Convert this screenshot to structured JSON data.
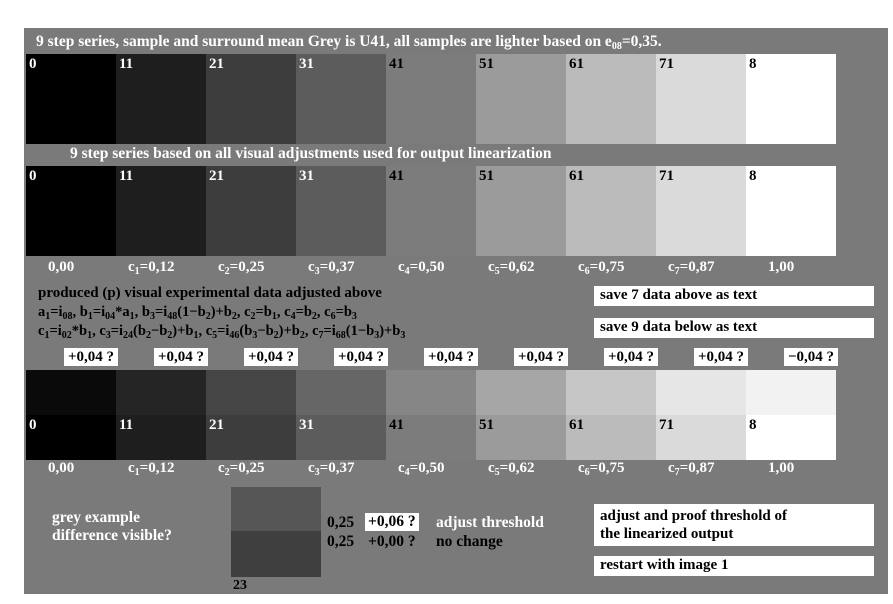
{
  "title_prefix": "9 step series, sample and surround mean Grey is U41, all samples are lighter based on e",
  "title_sub": "08",
  "title_suffix": "=0,35.",
  "series1": {
    "labels": [
      "0",
      "11",
      "21",
      "31",
      "41",
      "51",
      "61",
      "71",
      "8"
    ],
    "colors": [
      "#000000",
      "#1e1e1e",
      "#3d3d3d",
      "#5c5c5c",
      "#7c7c7c",
      "#9b9b9b",
      "#bbbbbb",
      "#dadada",
      "#ffffff"
    ]
  },
  "series2_title": "9 step series based on all visual adjustments used for output linearization",
  "series2": {
    "labels": [
      "0",
      "11",
      "21",
      "31",
      "41",
      "51",
      "61",
      "71",
      "8"
    ],
    "colors": [
      "#000000",
      "#1e1e1e",
      "#3d3d3d",
      "#5c5c5c",
      "#7c7c7c",
      "#9b9b9b",
      "#bbbbbb",
      "#dadada",
      "#ffffff"
    ]
  },
  "caption_row1": [
    {
      "pre": "0,00",
      "sub": "",
      "post": ""
    },
    {
      "pre": "c",
      "sub": "1",
      "post": "=0,12"
    },
    {
      "pre": "c",
      "sub": "2",
      "post": "=0,25"
    },
    {
      "pre": "c",
      "sub": "3",
      "post": "=0,37"
    },
    {
      "pre": "c",
      "sub": "4",
      "post": "=0,50"
    },
    {
      "pre": "c",
      "sub": "5",
      "post": "=0,62"
    },
    {
      "pre": "c",
      "sub": "6",
      "post": "=0,75"
    },
    {
      "pre": "c",
      "sub": "7",
      "post": "=0,87"
    },
    {
      "pre": "1,00",
      "sub": "",
      "post": ""
    }
  ],
  "produced_text": "produced (p) visual experimental data adjusted above",
  "formula1": "a1=i08, b1=i04*a1, b3=i48(1−b2)+b2, c2=b1, c4=b2, c6=b3",
  "formula2": "c1=i02*b1, c3=i24(b2−b2)+b1, c5=i46(b3−b2)+b2, c7=i68(1−b3)+b3",
  "save7_label": "save 7 data above as text",
  "save9_label": "save 9 data below as text",
  "increments": [
    "+0,04 ?",
    "+0,04 ?",
    "+0,04 ?",
    "+0,04 ?",
    "+0,04 ?",
    "+0,04 ?",
    "+0,04 ?",
    "+0,04 ?",
    "−0,04 ?"
  ],
  "series3": {
    "labels": [
      "0",
      "11",
      "21",
      "31",
      "41",
      "51",
      "61",
      "71",
      "8"
    ],
    "upper": [
      "#0a0a0a",
      "#252525",
      "#454545",
      "#666666",
      "#868686",
      "#a6a6a6",
      "#c6c6c6",
      "#e6e6e6",
      "#f2f2f2"
    ],
    "lower": [
      "#000000",
      "#1e1e1e",
      "#3d3d3d",
      "#5c5c5c",
      "#7c7c7c",
      "#9b9b9b",
      "#bbbbbb",
      "#dadada",
      "#ffffff"
    ]
  },
  "caption_row2": [
    {
      "pre": "0,00",
      "sub": "",
      "post": ""
    },
    {
      "pre": "c",
      "sub": "1",
      "post": "=0,12"
    },
    {
      "pre": "c",
      "sub": "2",
      "post": "=0,25"
    },
    {
      "pre": "c",
      "sub": "3",
      "post": "=0,37"
    },
    {
      "pre": "c",
      "sub": "4",
      "post": "=0,50"
    },
    {
      "pre": "c",
      "sub": "5",
      "post": "=0,62"
    },
    {
      "pre": "c",
      "sub": "6",
      "post": "=0,75"
    },
    {
      "pre": "c",
      "sub": "7",
      "post": "=0,87"
    },
    {
      "pre": "1,00",
      "sub": "",
      "post": ""
    }
  ],
  "grey_example_line1": "grey example",
  "grey_example_line2": "difference visible?",
  "example_patch": {
    "upper": "#565656",
    "lower": "#3f3f3f",
    "label": "23"
  },
  "threshold1_value": "0,25",
  "threshold1_box": "+0,06 ?",
  "threshold1_text": "adjust threshold",
  "threshold2_value": "0,25",
  "threshold2_box": "+0,00 ?",
  "threshold2_text": "no change",
  "adjust_proof_line1": "adjust and proof threshold of",
  "adjust_proof_line2": "the linearized output",
  "restart_label": "restart with image 1",
  "colors": {
    "frame_bg": "#7a7a7a",
    "text_light": "#ffffff",
    "text_dark": "#000000"
  }
}
